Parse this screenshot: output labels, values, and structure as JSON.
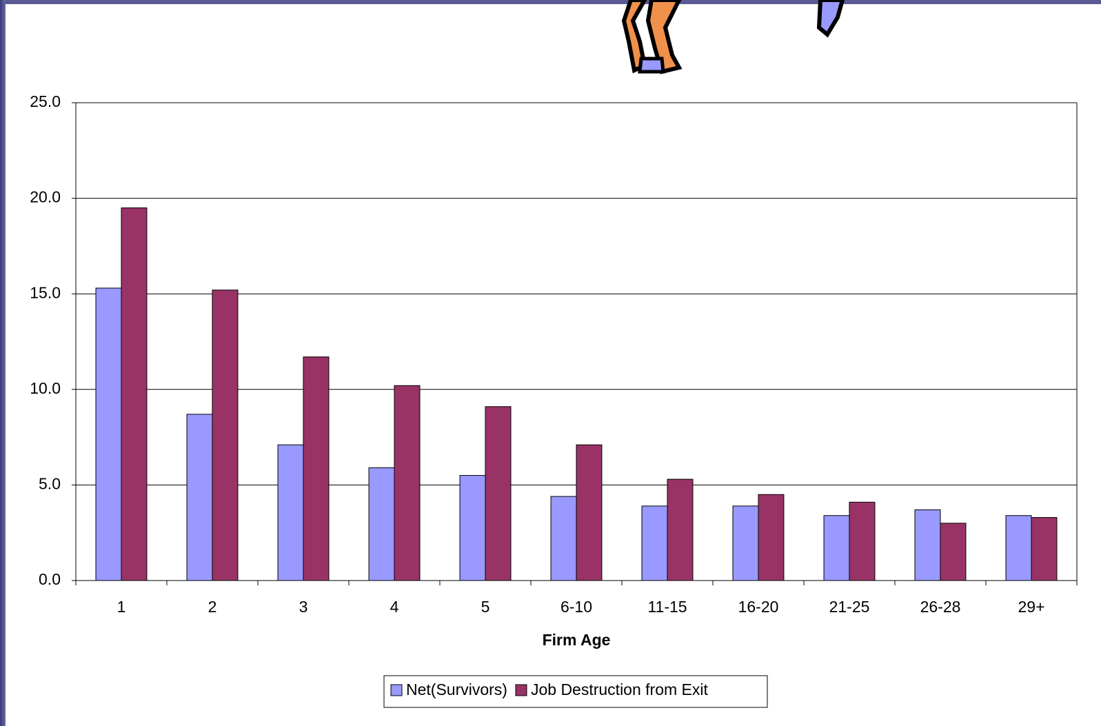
{
  "chart_data": {
    "type": "bar",
    "x_label": "Firm Age",
    "categories": [
      "1",
      "2",
      "3",
      "4",
      "5",
      "6-10",
      "11-15",
      "16-20",
      "21-25",
      "26-28",
      "29+"
    ],
    "series": [
      {
        "name": "Net(Survivors)",
        "color": "#9999ff",
        "values": [
          15.3,
          8.7,
          7.1,
          5.9,
          5.5,
          4.4,
          3.9,
          3.9,
          3.4,
          3.7,
          3.4
        ]
      },
      {
        "name": "Job Destruction from Exit",
        "color": "#993366",
        "values": [
          19.5,
          15.2,
          11.7,
          10.2,
          9.1,
          7.1,
          5.3,
          4.5,
          4.1,
          3.0,
          3.3
        ]
      }
    ],
    "ylim": [
      0,
      25
    ],
    "yticks": [
      {
        "value": 0,
        "label": "0.0"
      },
      {
        "value": 5,
        "label": "5.0"
      },
      {
        "value": 10,
        "label": "10.0"
      },
      {
        "value": 15,
        "label": "15.0"
      },
      {
        "value": 20,
        "label": "20.0"
      },
      {
        "value": 25,
        "label": "25.0"
      }
    ],
    "grid": true
  }
}
